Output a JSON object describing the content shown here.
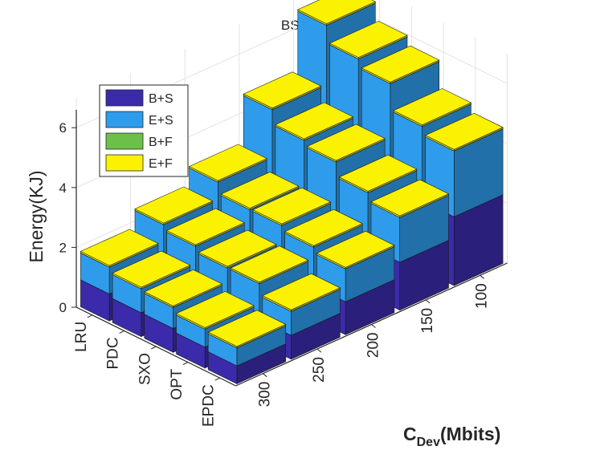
{
  "chart_data": {
    "type": "bar3d-stacked",
    "title": "BS(U)",
    "zlabel": "Energy(KJ)",
    "xlabel_main": "C",
    "xlabel_sub": "Dev",
    "xlabel_unit": "(Mbits)",
    "zlim": [
      0,
      7
    ],
    "zticks": [
      "0",
      "2",
      "4",
      "6"
    ],
    "grid": true,
    "legend_position": "top-left",
    "methods": [
      "LRU",
      "PDC",
      "SXO",
      "OPT",
      "EPDC"
    ],
    "cache_sizes": [
      "300",
      "250",
      "200",
      "150",
      "100"
    ],
    "series": [
      {
        "name": "B+S",
        "color": "#3B2BAA"
      },
      {
        "name": "E+S",
        "color": "#2E9CEB"
      },
      {
        "name": "B+F",
        "color": "#6CC04A"
      },
      {
        "name": "E+F",
        "color": "#FAF201"
      }
    ],
    "values": {
      "LRU": {
        "300": [
          0.9,
          0.9,
          0,
          0.05
        ],
        "250": [
          1.2,
          1.2,
          0,
          0.05
        ],
        "200": [
          1.5,
          1.5,
          0,
          0.05
        ],
        "150": [
          2.2,
          2.4,
          0,
          0.05
        ],
        "100": [
          3.3,
          3.3,
          0,
          0.05
        ]
      },
      "PDC": {
        "300": [
          0.8,
          0.8,
          0,
          0.05
        ],
        "250": [
          1.1,
          1.1,
          0,
          0.05
        ],
        "200": [
          1.3,
          1.3,
          0,
          0.05
        ],
        "150": [
          2.1,
          2.0,
          0,
          0.05
        ],
        "100": [
          3.0,
          3.0,
          0,
          0.05
        ]
      },
      "SXO": {
        "300": [
          0.8,
          0.7,
          0,
          0.05
        ],
        "250": [
          1.0,
          1.0,
          0,
          0.05
        ],
        "200": [
          1.3,
          1.3,
          0,
          0.05
        ],
        "150": [
          1.9,
          2.0,
          0,
          0.05
        ],
        "100": [
          2.9,
          2.8,
          0,
          0.05
        ]
      },
      "OPT": {
        "300": [
          0.7,
          0.6,
          0,
          0.05
        ],
        "250": [
          1.0,
          1.0,
          0,
          0.05
        ],
        "200": [
          1.2,
          1.2,
          0,
          0.05
        ],
        "150": [
          1.8,
          1.6,
          0,
          0.05
        ],
        "100": [
          2.5,
          2.3,
          0,
          0.05
        ]
      },
      "EPDC": {
        "300": [
          0.6,
          0.6,
          0,
          0.05
        ],
        "250": [
          0.8,
          0.8,
          0,
          0.05
        ],
        "200": [
          1.1,
          1.1,
          0,
          0.05
        ],
        "150": [
          1.6,
          1.5,
          0,
          0.05
        ],
        "100": [
          2.3,
          2.2,
          0,
          0.05
        ]
      }
    }
  }
}
